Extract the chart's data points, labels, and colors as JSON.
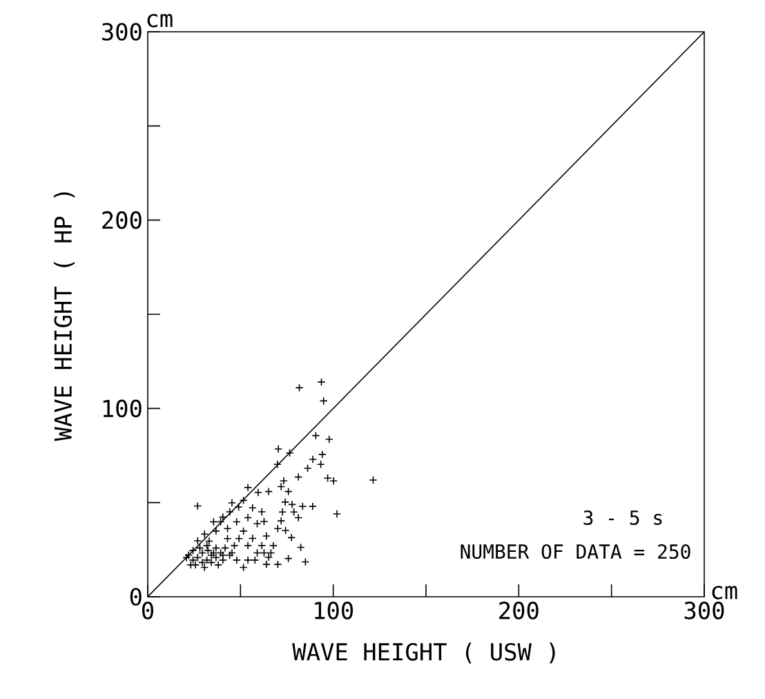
{
  "chart_data": {
    "type": "scatter",
    "xlabel": "WAVE HEIGHT  ( USW )",
    "ylabel": "WAVE HEIGHT  ( HP )",
    "xlim": [
      0,
      300
    ],
    "ylim": [
      0,
      300
    ],
    "xticks": [
      0,
      {
        "value": 50,
        "label": null
      },
      100,
      {
        "value": 150,
        "label": null
      },
      200,
      {
        "value": 250,
        "label": null
      },
      300
    ],
    "yticks": [
      0,
      {
        "value": 50,
        "label": null
      },
      100,
      {
        "value": 150,
        "label": null
      },
      200,
      {
        "value": 250,
        "label": null
      },
      300
    ],
    "grid": false,
    "marker": "cross",
    "annotations": [
      "cm",
      "cm",
      "3  - 5  s",
      "NUMBER OF DATA =  250"
    ],
    "series": [
      {
        "type": "line",
        "marker": "none",
        "color": "#000000",
        "x": [
          0,
          300
        ],
        "values": [
          0,
          300
        ]
      },
      {
        "color": "#000000",
        "x": [
          81.7,
          93.6,
          94.8,
          90.6,
          97.8,
          70.4,
          76.5,
          94.1,
          86.2,
          93.3,
          89,
          69.9,
          81.2,
          97,
          100.2,
          121.5,
          26.9,
          54,
          59.5,
          65.2,
          71.9,
          73.3,
          75.8,
          74.1,
          77.8,
          83.5,
          88.9,
          102,
          81.2,
          78.8,
          72.6,
          71.9,
          74.3,
          77.5,
          82.5,
          85,
          75.8,
          70.1,
          65.2,
          67.7,
          64,
          70.1,
          59,
          54,
          49,
          44.2,
          39.3,
          36.8,
          43,
          47.9,
          51.6,
          56.5,
          61.5,
          59,
          54,
          51.6,
          57.8,
          62.7,
          66.4,
          46.7,
          44.2,
          41.7,
          48,
          40.5,
          35.5,
          33.1,
          30.6,
          35.5,
          40.5,
          45.4,
          51.6,
          56.5,
          61.5,
          62.7,
          22,
          24.4,
          26.9,
          29.4,
          31.9,
          34.3,
          36.8,
          39.3,
          24.4,
          28.1,
          31.9,
          29.4,
          34.3,
          25.7,
          30.6,
          23.2,
          38,
          26.9,
          32.5,
          36.8,
          20.9,
          40.5,
          43,
          49.2,
          45.4,
          54,
          64
        ],
        "values": [
          111,
          114,
          104,
          85.6,
          83.6,
          78.5,
          76.4,
          75.6,
          68.2,
          70.3,
          73,
          70.3,
          63.6,
          63,
          61.5,
          62,
          48.2,
          58,
          55.4,
          55.9,
          58.5,
          61.5,
          55.9,
          50.3,
          49,
          48,
          48,
          44,
          42,
          45,
          45,
          40.3,
          35.2,
          31.4,
          26.2,
          18.5,
          20.3,
          17.2,
          21,
          27.2,
          32.3,
          36.2,
          38.8,
          42,
          47.7,
          45.1,
          39.8,
          34.9,
          36.2,
          39.8,
          34.9,
          31,
          27.2,
          23.3,
          19.5,
          15.6,
          19.5,
          23.3,
          23.3,
          27.2,
          22.1,
          25.9,
          19.5,
          19.5,
          23.3,
          29.5,
          33.3,
          39.8,
          42.3,
          49.9,
          51.2,
          47.2,
          45.1,
          40,
          22.1,
          19.5,
          20.8,
          18.2,
          19.5,
          18.2,
          20.8,
          23.3,
          24.6,
          25.9,
          27.2,
          23.3,
          22.1,
          16.9,
          15.6,
          16.9,
          16.9,
          29.7,
          24.6,
          25.9,
          20.8,
          22.1,
          30.9,
          30.9,
          23.3,
          27.2,
          17.2
        ]
      }
    ]
  }
}
